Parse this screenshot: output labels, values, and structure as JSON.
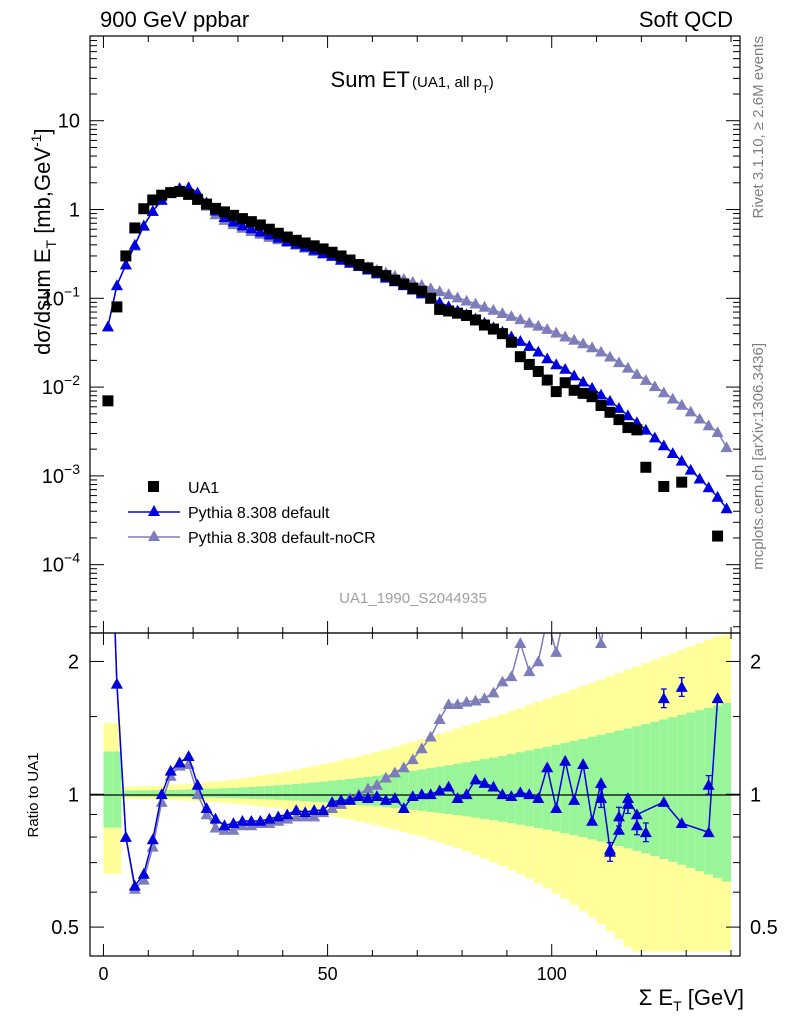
{
  "header": {
    "left": "900 GeV ppbar",
    "right": "Soft QCD"
  },
  "side_labels": {
    "top": "Rivet 3.1.10, ≥ 2.6M events",
    "bottom": "mcplots.cern.ch [arXiv:1306.3436]"
  },
  "chart_data": {
    "type": "scatter",
    "title": "Sum ET",
    "title_note": "(UA1, all p",
    "title_note_sub": "T",
    "title_note_end": ")",
    "watermark": "UA1_1990_S2044935",
    "xlabel_prefix": "Σ E",
    "xlabel_sub": "T",
    "xlabel_suffix": " [GeV]",
    "ylabel": "dσ/dsum E",
    "ylabel_sub": "T",
    "ylabel_unit": " [mb,GeV",
    "ylabel_unit_sup": "-1",
    "ylabel_unit_end": "]",
    "ratio_ylabel": "Ratio to UA1",
    "log_y": true,
    "xlim": [
      -3,
      142
    ],
    "ylim": [
      1.7e-05,
      90
    ],
    "ratio_ylim": [
      0.43,
      2.32
    ],
    "x_ticks": [
      0,
      50,
      100
    ],
    "y_ticks": [
      {
        "v": 10,
        "base": "10",
        "exp": ""
      },
      {
        "v": 1,
        "base": "1",
        "exp": ""
      },
      {
        "v": 0.1,
        "base": "10",
        "exp": "−1"
      },
      {
        "v": 0.01,
        "base": "10",
        "exp": "−2"
      },
      {
        "v": 0.001,
        "base": "10",
        "exp": "−3"
      },
      {
        "v": 0.0001,
        "base": "10",
        "exp": "−4"
      }
    ],
    "ratio_ticks": [
      0.5,
      1,
      2
    ],
    "legend": {
      "position": "lower-left",
      "entries": [
        {
          "label": "UA1",
          "marker": "square",
          "color": "#000000"
        },
        {
          "label": "Pythia 8.308 default",
          "marker": "triangle",
          "color": "#0000dd"
        },
        {
          "label": "Pythia 8.308 default-noCR",
          "marker": "triangle",
          "color": "#7d7dbb"
        }
      ]
    },
    "colors": {
      "data": "#000000",
      "default": "#0000dd",
      "nocr": "#7d7dbb",
      "band_inner": "#99f599",
      "band_outer": "#ffff99"
    },
    "series": [
      {
        "name": "UA1",
        "x": [
          1,
          3,
          5,
          7,
          9,
          11,
          13,
          15,
          17,
          19,
          21,
          23,
          25,
          27,
          29,
          31,
          33,
          35,
          37,
          39,
          41,
          43,
          45,
          47,
          49,
          51,
          53,
          55,
          57,
          59,
          61,
          63,
          65,
          67,
          69,
          71,
          73,
          75,
          77,
          79,
          81,
          83,
          85,
          87,
          89,
          91,
          93,
          95,
          97,
          99,
          101,
          103,
          105,
          107,
          109,
          111,
          113,
          115,
          117,
          119,
          121,
          123,
          125,
          127,
          129,
          131,
          133,
          135,
          137,
          139
        ],
        "values": [
          0.007,
          0.08,
          0.3,
          0.62,
          1.02,
          1.28,
          1.45,
          1.55,
          1.6,
          1.48,
          1.3,
          1.15,
          1.03,
          0.94,
          0.86,
          0.79,
          0.73,
          0.67,
          0.6,
          0.54,
          0.49,
          0.45,
          0.42,
          0.39,
          0.36,
          0.33,
          0.3,
          0.27,
          0.24,
          0.22,
          0.2,
          0.18,
          0.16,
          0.145,
          0.13,
          0.12,
          0.1,
          0.075,
          0.072,
          0.068,
          0.064,
          0.057,
          0.05,
          0.045,
          0.04,
          0.032,
          0.022,
          0.018,
          0.015,
          0.012,
          0.0089,
          0.0112,
          0.0092,
          0.0085,
          0.0078,
          0.0062,
          0.0052,
          0.0043,
          0.0035,
          0.0033,
          0.00125,
          null,
          0.00076,
          null,
          0.00085,
          null,
          null,
          null,
          0.00021,
          null
        ]
      },
      {
        "name": "Pythia 8.308 default",
        "x": [
          1,
          3,
          5,
          7,
          9,
          11,
          13,
          15,
          17,
          19,
          21,
          23,
          25,
          27,
          29,
          31,
          33,
          35,
          37,
          39,
          41,
          43,
          45,
          47,
          49,
          51,
          53,
          55,
          57,
          59,
          61,
          63,
          65,
          67,
          69,
          71,
          73,
          75,
          77,
          79,
          81,
          83,
          85,
          87,
          89,
          91,
          93,
          95,
          97,
          99,
          101,
          103,
          105,
          107,
          109,
          111,
          113,
          115,
          117,
          119,
          121,
          123,
          125,
          127,
          129,
          131,
          133,
          135,
          137,
          139
        ],
        "values": [
          0.048,
          0.14,
          0.24,
          0.4,
          0.66,
          0.96,
          1.28,
          1.54,
          1.72,
          1.78,
          1.55,
          1.2,
          0.97,
          0.82,
          0.73,
          0.66,
          0.61,
          0.56,
          0.52,
          0.48,
          0.44,
          0.41,
          0.38,
          0.35,
          0.32,
          0.3,
          0.27,
          0.25,
          0.23,
          0.21,
          0.19,
          0.17,
          0.155,
          0.14,
          0.125,
          0.113,
          0.1,
          0.09,
          0.081,
          0.073,
          0.066,
          0.059,
          0.053,
          0.047,
          0.042,
          0.037,
          0.033,
          0.029,
          0.025,
          0.021,
          0.018,
          0.016,
          0.0135,
          0.0115,
          0.0098,
          0.0082,
          0.007,
          0.0058,
          0.0048,
          0.004,
          0.0033,
          0.0027,
          0.0022,
          0.0018,
          0.00148,
          0.00117,
          0.00093,
          0.00074,
          0.00058,
          0.00043
        ]
      },
      {
        "name": "Pythia 8.308 default-noCR",
        "x": [
          1,
          3,
          5,
          7,
          9,
          11,
          13,
          15,
          17,
          19,
          21,
          23,
          25,
          27,
          29,
          31,
          33,
          35,
          37,
          39,
          41,
          43,
          45,
          47,
          49,
          51,
          53,
          55,
          57,
          59,
          61,
          63,
          65,
          67,
          69,
          71,
          73,
          75,
          77,
          79,
          81,
          83,
          85,
          87,
          89,
          91,
          93,
          95,
          97,
          99,
          101,
          103,
          105,
          107,
          109,
          111,
          113,
          115,
          117,
          119,
          121,
          123,
          125,
          127,
          129,
          131,
          133,
          135,
          137,
          139
        ],
        "values": [
          0.048,
          0.14,
          0.24,
          0.39,
          0.65,
          0.96,
          1.28,
          1.55,
          1.76,
          1.75,
          1.45,
          1.1,
          0.88,
          0.76,
          0.68,
          0.62,
          0.57,
          0.53,
          0.49,
          0.46,
          0.43,
          0.4,
          0.37,
          0.34,
          0.32,
          0.3,
          0.28,
          0.26,
          0.24,
          0.225,
          0.21,
          0.195,
          0.18,
          0.165,
          0.153,
          0.141,
          0.13,
          0.12,
          0.111,
          0.102,
          0.094,
          0.087,
          0.08,
          0.074,
          0.068,
          0.063,
          0.058,
          0.053,
          0.049,
          0.045,
          0.041,
          0.037,
          0.034,
          0.031,
          0.028,
          0.025,
          0.022,
          0.019,
          0.0165,
          0.014,
          0.012,
          0.0102,
          0.0087,
          0.0074,
          0.0063,
          0.0053,
          0.0044,
          0.0037,
          0.0031,
          0.0021
        ]
      }
    ],
    "ratio_series": [
      {
        "name": "Pythia 8.308 default",
        "x": [
          1,
          3,
          5,
          7,
          9,
          11,
          13,
          15,
          17,
          19,
          21,
          23,
          25,
          27,
          29,
          31,
          33,
          35,
          37,
          39,
          41,
          43,
          45,
          47,
          49,
          51,
          53,
          55,
          57,
          59,
          61,
          63,
          65,
          67,
          69,
          71,
          73,
          75,
          77,
          79,
          81,
          83,
          85,
          87,
          89,
          91,
          93,
          95,
          97,
          99,
          101,
          103,
          105,
          107,
          109,
          111,
          113,
          115,
          117,
          119,
          125,
          129,
          135,
          137
        ],
        "values": [
          6.8,
          1.78,
          0.8,
          0.62,
          0.66,
          0.79,
          1.0,
          1.13,
          1.18,
          1.22,
          1.05,
          0.93,
          0.88,
          0.85,
          0.86,
          0.87,
          0.87,
          0.87,
          0.88,
          0.89,
          0.9,
          0.92,
          0.91,
          0.92,
          0.92,
          0.96,
          0.97,
          0.97,
          0.99,
          0.98,
          0.99,
          0.97,
          0.98,
          0.93,
          0.99,
          1.0,
          1.0,
          1.02,
          1.04,
          0.98,
          1.0,
          1.08,
          1.06,
          1.04,
          1.0,
          0.99,
          1.01,
          1.0,
          0.98,
          1.15,
          0.93,
          1.19,
          0.97,
          1.17,
          0.87,
          1.06,
          0.75,
          0.83,
          0.98,
          0.9,
          0.96,
          0.86,
          0.82,
          1.65
        ],
        "err_x": [
          111,
          113,
          115,
          117,
          119,
          121,
          125,
          129,
          135
        ],
        "err_y": [
          0.98,
          0.74,
          0.89,
          0.95,
          0.85,
          0.82,
          1.65,
          1.75,
          1.05
        ]
      },
      {
        "name": "Pythia 8.308 default-noCR",
        "x": [
          1,
          3,
          5,
          7,
          9,
          11,
          13,
          15,
          17,
          19,
          21,
          23,
          25,
          27,
          29,
          31,
          33,
          35,
          37,
          39,
          41,
          43,
          45,
          47,
          49,
          51,
          53,
          55,
          57,
          59,
          61,
          63,
          65,
          67,
          69,
          71,
          73,
          75,
          77,
          79,
          81,
          83,
          85,
          87,
          89,
          91,
          93,
          95,
          97,
          99,
          101,
          103,
          105,
          107,
          109,
          111,
          113
        ],
        "values": [
          6.8,
          1.78,
          0.8,
          0.61,
          0.64,
          0.76,
          0.96,
          1.1,
          1.16,
          1.17,
          1.0,
          0.9,
          0.84,
          0.83,
          0.83,
          0.85,
          0.85,
          0.86,
          0.86,
          0.87,
          0.88,
          0.89,
          0.89,
          0.89,
          0.91,
          0.93,
          0.95,
          0.98,
          1.0,
          1.03,
          1.05,
          1.09,
          1.12,
          1.15,
          1.2,
          1.27,
          1.35,
          1.48,
          1.6,
          1.6,
          1.62,
          1.63,
          1.65,
          1.7,
          1.8,
          1.85,
          2.2,
          1.9,
          2.0,
          2.5,
          2.1,
          2.6,
          3.2,
          2.4,
          2.8,
          2.2,
          2.9
        ]
      }
    ]
  }
}
